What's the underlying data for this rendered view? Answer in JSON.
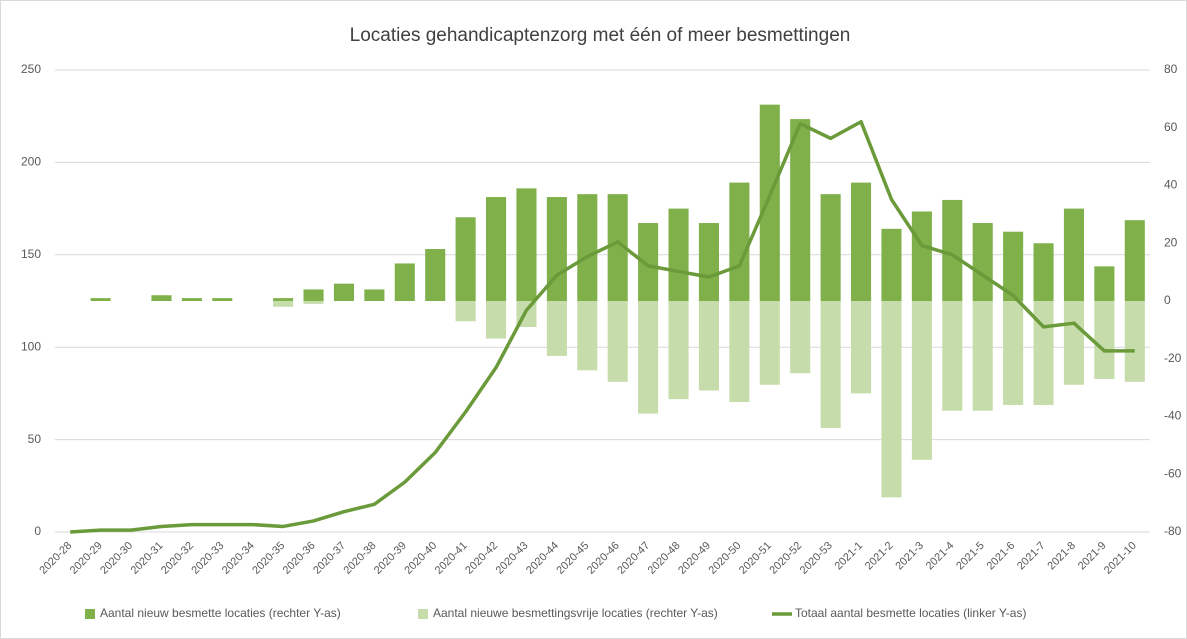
{
  "chart_data": {
    "type": "bar_line",
    "title": "Locaties gehandicaptenzorg met één of meer besmettingen",
    "categories": [
      "2020-28",
      "2020-29",
      "2020-30",
      "2020-31",
      "2020-32",
      "2020-33",
      "2020-34",
      "2020-35",
      "2020-36",
      "2020-37",
      "2020-38",
      "2020-39",
      "2020-40",
      "2020-41",
      "2020-42",
      "2020-43",
      "2020-44",
      "2020-45",
      "2020-46",
      "2020-47",
      "2020-48",
      "2020-49",
      "2020-50",
      "2020-51",
      "2020-52",
      "2020-53",
      "2021-1",
      "2021-2",
      "2021-3",
      "2021-4",
      "2021-5",
      "2021-6",
      "2021-7",
      "2021-8",
      "2021-9",
      "2021-10"
    ],
    "series": [
      {
        "name": "Aantal nieuw besmette locaties (rechter Y-as)",
        "type": "bar",
        "axis": "y2",
        "color": "#7fb04a",
        "values": [
          0,
          1,
          0,
          2,
          1,
          1,
          0,
          1,
          4,
          6,
          4,
          13,
          18,
          29,
          36,
          39,
          36,
          37,
          37,
          27,
          32,
          27,
          41,
          68,
          63,
          37,
          41,
          25,
          31,
          35,
          27,
          24,
          20,
          32,
          12,
          28
        ]
      },
      {
        "name": "Aantal nieuwe besmettingsvrije locaties (rechter Y-as)",
        "type": "bar",
        "axis": "y2",
        "color": "#c6dcaa",
        "values": [
          0,
          0,
          0,
          0,
          0,
          0,
          0,
          -2,
          -1,
          0,
          0,
          0,
          0,
          -7,
          -13,
          -9,
          -19,
          -24,
          -28,
          -39,
          -34,
          -31,
          -35,
          -29,
          -25,
          -44,
          -32,
          -68,
          -55,
          -38,
          -38,
          -36,
          -36,
          -29,
          -27,
          -28
        ]
      },
      {
        "name": "Totaal aantal besmette locaties (linker Y-as)",
        "type": "line",
        "axis": "y",
        "color": "#6b9a3a",
        "values": [
          0,
          1,
          1,
          3,
          4,
          4,
          4,
          3,
          6,
          11,
          15,
          27,
          43,
          65,
          89,
          120,
          139,
          149,
          157,
          144,
          141,
          138,
          144,
          182,
          221,
          213,
          222,
          180,
          155,
          150,
          139,
          128,
          111,
          113,
          98,
          98
        ]
      }
    ],
    "ylim": [
      0,
      250
    ],
    "yticks": [
      0,
      50,
      100,
      150,
      200,
      250
    ],
    "y2lim": [
      -80,
      80
    ],
    "y2ticks": [
      -80,
      -60,
      -40,
      -20,
      0,
      20,
      40,
      60,
      80
    ],
    "grid": true
  }
}
